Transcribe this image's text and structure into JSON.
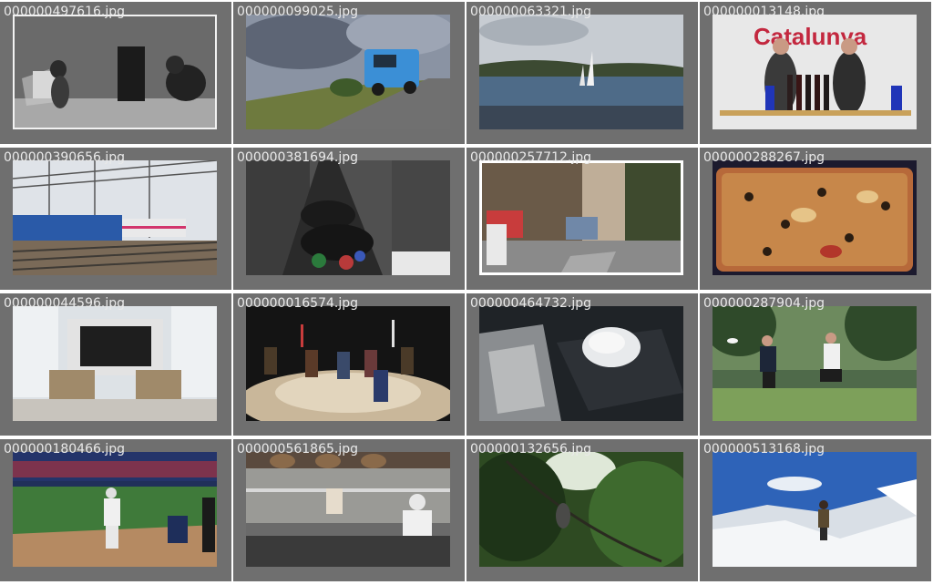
{
  "tiles": [
    {
      "filename": "000000497616.jpg",
      "label": "vintage photo of two kittens at a toy table and stove"
    },
    {
      "filename": "000000099025.jpg",
      "label": "blue truck on a country road under storm clouds"
    },
    {
      "filename": "000000063321.jpg",
      "label": "sailboats on a lake"
    },
    {
      "filename": "000000013148.jpg",
      "label": "two men presenting wine bottles"
    },
    {
      "filename": "000000390656.jpg",
      "label": "trains on railway tracks with overhead wires"
    },
    {
      "filename": "000000381694.jpg",
      "label": "crowded street full of umbrellas"
    },
    {
      "filename": "000000257712.jpg",
      "label": "city street with bus and pedestrians"
    },
    {
      "filename": "000000288267.jpg",
      "label": "close-up of a pizza with olives"
    },
    {
      "filename": "000000044596.jpg",
      "label": "living room with large tv and two chairs"
    },
    {
      "filename": "000000016574.jpg",
      "label": "knights on horseback in an arena"
    },
    {
      "filename": "000000464732.jpg",
      "label": "computer mouse on a mouse pad next to keyboard"
    },
    {
      "filename": "000000287904.jpg",
      "label": "two people playing frisbee in a park"
    },
    {
      "filename": "000000180466.jpg",
      "label": "baseball batter, catcher and umpire at home plate"
    },
    {
      "filename": "000000561865.jpg",
      "label": "chef in a commercial kitchen"
    },
    {
      "filename": "000000132656.jpg",
      "label": "bird perched in a leafy tree"
    },
    {
      "filename": "000000513168.jpg",
      "label": "skier on a snowy mountain"
    }
  ],
  "colors": {
    "cell_bg": "#6f6f6f",
    "page_bg": "#ffffff",
    "filename_text": "#e9e9e9"
  }
}
